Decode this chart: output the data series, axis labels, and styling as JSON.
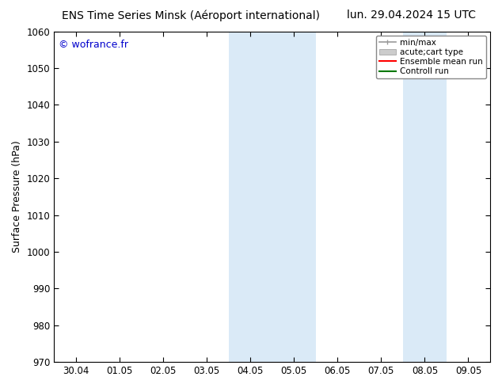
{
  "title_left": "ENS Time Series Minsk (Aéroport international)",
  "title_right": "lun. 29.04.2024 15 UTC",
  "ylabel": "Surface Pressure (hPa)",
  "ylim": [
    970,
    1060
  ],
  "yticks": [
    970,
    980,
    990,
    1000,
    1010,
    1020,
    1030,
    1040,
    1050,
    1060
  ],
  "xlim_start": -0.5,
  "xlim_end": 9.5,
  "xtick_labels": [
    "30.04",
    "01.05",
    "02.05",
    "03.05",
    "04.05",
    "05.05",
    "06.05",
    "07.05",
    "08.05",
    "09.05"
  ],
  "xtick_positions": [
    0,
    1,
    2,
    3,
    4,
    5,
    6,
    7,
    8,
    9
  ],
  "shaded_regions": [
    {
      "xmin": 3.5,
      "xmax": 5.5,
      "color": "#daeaf7"
    },
    {
      "xmin": 7.5,
      "xmax": 8.5,
      "color": "#daeaf7"
    }
  ],
  "watermark_text": "© wofrance.fr",
  "watermark_color": "#0000cc",
  "background_color": "#ffffff",
  "legend_entries": [
    {
      "label": "min/max",
      "color": "#999999",
      "lw": 1.2,
      "style": "minmax"
    },
    {
      "label": "acute;cart type",
      "color": "#cccccc",
      "lw": 8,
      "style": "thick"
    },
    {
      "label": "Ensemble mean run",
      "color": "#ff0000",
      "lw": 1.5,
      "style": "line"
    },
    {
      "label": "Controll run",
      "color": "#007700",
      "lw": 1.5,
      "style": "line"
    }
  ],
  "title_fontsize": 10,
  "label_fontsize": 9,
  "tick_fontsize": 8.5
}
